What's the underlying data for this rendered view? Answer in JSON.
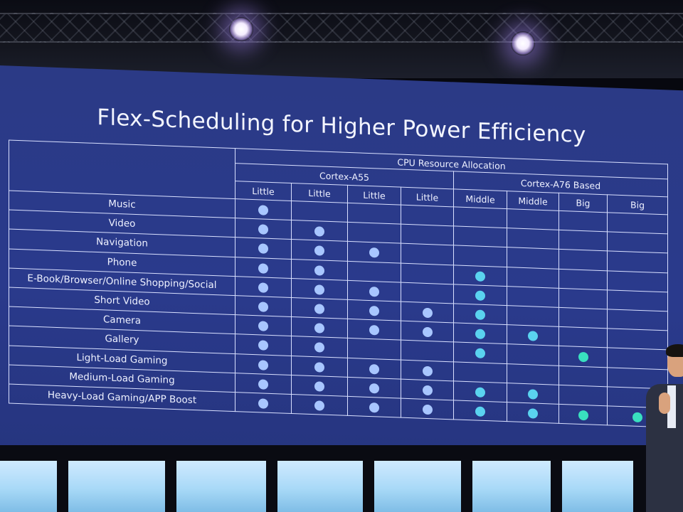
{
  "title": "Flex-Scheduling for Higher Power Efficiency",
  "table": {
    "group_label": "CPU Resource Allocation",
    "clusters": [
      {
        "label": "Cortex-A55",
        "span": 4
      },
      {
        "label": "Cortex-A76 Based",
        "span": 4
      }
    ],
    "cores": [
      "Little",
      "Little",
      "Little",
      "Little",
      "Middle",
      "Middle",
      "Big",
      "Big"
    ],
    "rows": [
      {
        "app": "Music",
        "active": [
          1,
          0,
          0,
          0,
          0,
          0,
          0,
          0
        ]
      },
      {
        "app": "Video",
        "active": [
          1,
          1,
          0,
          0,
          0,
          0,
          0,
          0
        ]
      },
      {
        "app": "Navigation",
        "active": [
          1,
          1,
          1,
          0,
          0,
          0,
          0,
          0
        ]
      },
      {
        "app": "Phone",
        "active": [
          1,
          1,
          0,
          0,
          1,
          0,
          0,
          0
        ]
      },
      {
        "app": "E-Book/Browser/Online Shopping/Social",
        "active": [
          1,
          1,
          1,
          0,
          1,
          0,
          0,
          0
        ]
      },
      {
        "app": "Short Video",
        "active": [
          1,
          1,
          1,
          1,
          1,
          0,
          0,
          0
        ]
      },
      {
        "app": "Camera",
        "active": [
          1,
          1,
          1,
          1,
          1,
          1,
          0,
          0
        ]
      },
      {
        "app": "Gallery",
        "active": [
          1,
          1,
          0,
          0,
          1,
          0,
          1,
          0
        ]
      },
      {
        "app": "Light-Load Gaming",
        "active": [
          1,
          1,
          1,
          1,
          0,
          0,
          0,
          0
        ]
      },
      {
        "app": "Medium-Load Gaming",
        "active": [
          1,
          1,
          1,
          1,
          1,
          1,
          0,
          0
        ]
      },
      {
        "app": "Heavy-Load Gaming/APP Boost",
        "active": [
          1,
          1,
          1,
          1,
          1,
          1,
          1,
          1
        ]
      }
    ]
  },
  "colors": {
    "screen_blue": "#2a3a8c",
    "grid_line": "#d9e0ff",
    "little_dot": "#a8c6ff",
    "middle_dot": "#5ad3ef",
    "big_dot": "#39e0bf"
  }
}
